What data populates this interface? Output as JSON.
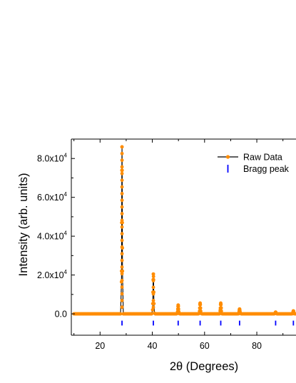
{
  "chart_data": {
    "type": "line",
    "xlabel": "2θ (Degrees)",
    "ylabel": "Intensity (arb. units)",
    "xlim": [
      9,
      95
    ],
    "ylim": [
      -11000,
      90000
    ],
    "x_ticks": [
      20,
      40,
      60,
      80
    ],
    "x_tick_labels": [
      "20",
      "40",
      "60",
      "80"
    ],
    "y_ticks": [
      0,
      20000,
      40000,
      60000,
      80000
    ],
    "y_tick_labels": [
      {
        "mantissa": "0.0",
        "exponent": ""
      },
      {
        "mantissa": "2.0x10",
        "exponent": "4"
      },
      {
        "mantissa": "4.0x10",
        "exponent": "4"
      },
      {
        "mantissa": "6.0x10",
        "exponent": "4"
      },
      {
        "mantissa": "8.0x10",
        "exponent": "4"
      }
    ],
    "grid": false,
    "legend_position": "top-right",
    "series": [
      {
        "name": "Raw Data",
        "kind": "line-with-markers",
        "line_color": "#000000",
        "marker_color": "#FF8C00",
        "baseline": 0,
        "peaks": [
          {
            "x": 28.4,
            "y": 86000
          },
          {
            "x": 40.4,
            "y": 20500
          },
          {
            "x": 49.9,
            "y": 4500
          },
          {
            "x": 58.3,
            "y": 5500
          },
          {
            "x": 66.2,
            "y": 5500
          },
          {
            "x": 73.4,
            "y": 2500
          },
          {
            "x": 87.2,
            "y": 900
          },
          {
            "x": 94.0,
            "y": 1500
          }
        ]
      },
      {
        "name": "Bragg peak",
        "kind": "tick-marks",
        "color": "#0000FF",
        "tick_y_range": [
          -6000,
          -3500
        ],
        "positions": [
          28.4,
          40.4,
          49.9,
          58.3,
          66.2,
          73.4,
          87.2,
          94.0
        ]
      }
    ]
  }
}
